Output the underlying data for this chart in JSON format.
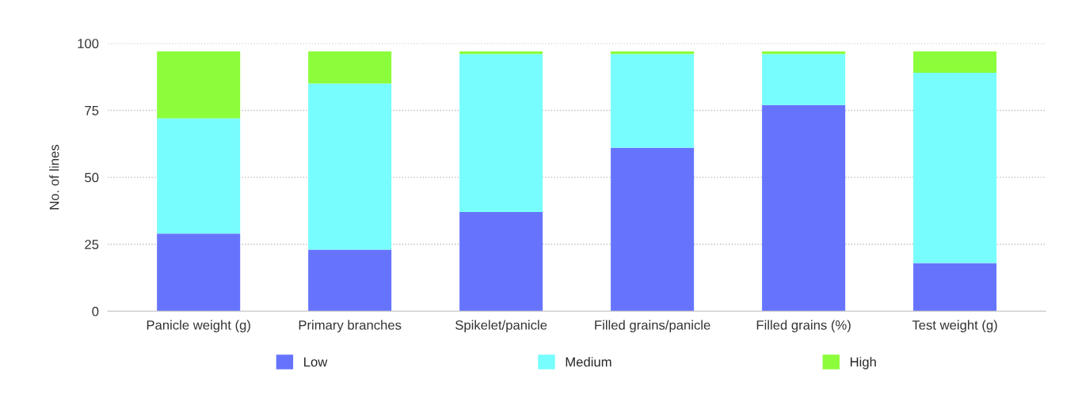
{
  "chart_data": {
    "type": "bar",
    "stacked": true,
    "ylabel": "No. of lines",
    "categories": [
      "Panicle weight (g)",
      "Primary branches",
      "Spikelet/panicle",
      "Filled grains/panicle",
      "Filled grains (%)",
      "Test weight (g)"
    ],
    "series": [
      {
        "name": "Low",
        "color": "#6674fd",
        "values": [
          29,
          23,
          37,
          61,
          77,
          18
        ]
      },
      {
        "name": "Medium",
        "color": "#77fdfd",
        "values": [
          43,
          62,
          59,
          35,
          19,
          71
        ]
      },
      {
        "name": "High",
        "color": "#8cfd3b",
        "values": [
          25,
          12,
          1,
          1,
          1,
          8
        ]
      }
    ],
    "ylim": [
      0,
      100
    ],
    "yticks": [
      0,
      25,
      50,
      75,
      100
    ],
    "grid": "y",
    "legend": "bottom"
  }
}
